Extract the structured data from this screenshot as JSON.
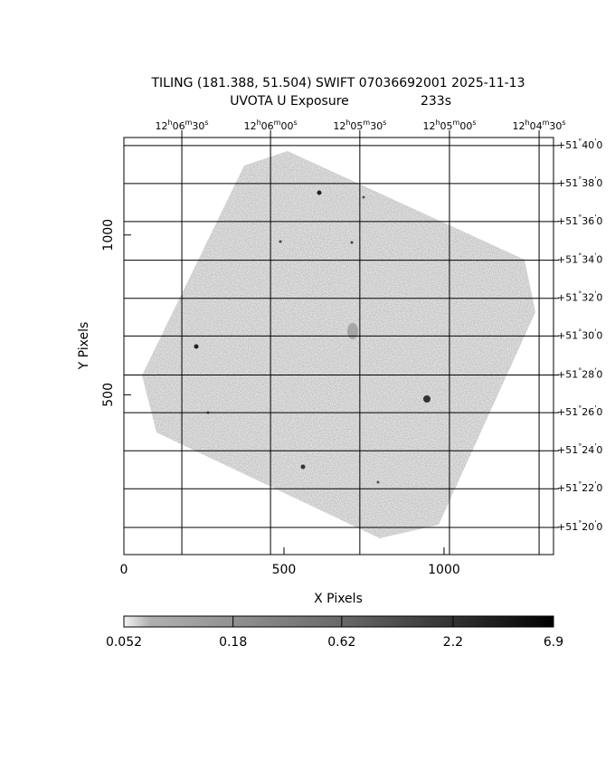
{
  "chart_data": {
    "type": "image",
    "title": "TILING (181.388, 51.504) SWIFT 07036692001 2025-11-13",
    "subtitle": "UVOTA U Exposure",
    "exposure": "233s",
    "xlabel": "X Pixels",
    "ylabel": "Y Pixels",
    "xlim": [
      0,
      1342
    ],
    "ylim": [
      0,
      1305
    ],
    "xticks": [
      0,
      500,
      1000
    ],
    "yticks": [
      500,
      1000
    ],
    "ra_ticks": [
      {
        "value": 181,
        "label": "12h06m30s"
      },
      {
        "value": 458,
        "label": "12h06m00s"
      },
      {
        "value": 737,
        "label": "12h05m30s"
      },
      {
        "value": 1017,
        "label": "12h05m00s"
      },
      {
        "value": 1297,
        "label": "12h04m30s"
      }
    ],
    "dec_ticks": [
      {
        "value": 1280,
        "label": "+51°40'0"
      },
      {
        "value": 1161,
        "label": "+51°38'0"
      },
      {
        "value": 1042,
        "label": "+51°36'0"
      },
      {
        "value": 921,
        "label": "+51°34'0"
      },
      {
        "value": 802,
        "label": "+51°32'0"
      },
      {
        "value": 684,
        "label": "+51°30'0"
      },
      {
        "value": 562,
        "label": "+51°28'0"
      },
      {
        "value": 444,
        "label": "+51°26'0"
      },
      {
        "value": 325,
        "label": "+51°24'0"
      },
      {
        "value": 206,
        "label": "+51°22'0"
      },
      {
        "value": 85,
        "label": "+51°20'0"
      }
    ],
    "colorbar": {
      "lim": [
        0.052,
        6.9
      ],
      "log": true,
      "ticks": [
        0.052,
        0.18,
        0.62,
        2.2,
        6.9
      ]
    }
  }
}
